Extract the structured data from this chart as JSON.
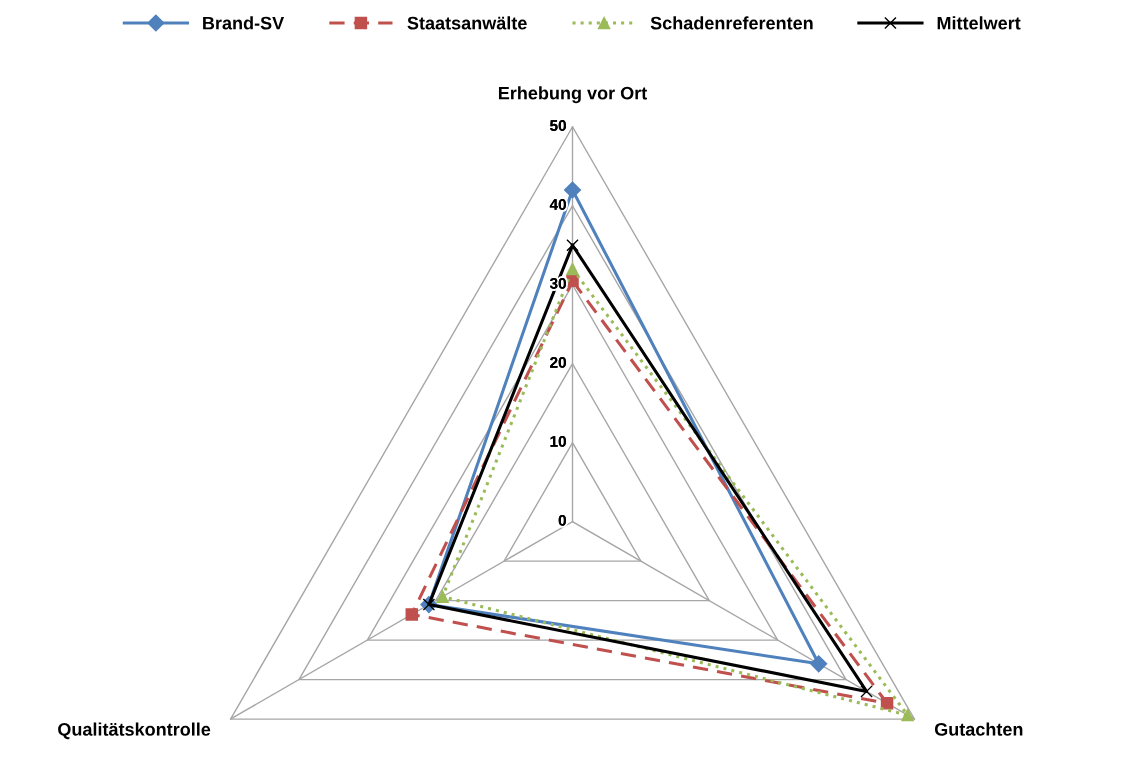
{
  "chart_data": {
    "type": "radar",
    "categories": [
      "Erhebung vor Ort",
      "Gutachten",
      "Qualitätskontrolle"
    ],
    "ylim": [
      0,
      50
    ],
    "yticks": [
      0,
      10,
      20,
      30,
      40,
      50
    ],
    "grid": true,
    "legend": "top",
    "series": [
      {
        "name": "Brand-SV",
        "color": "#4f81bd",
        "marker": "diamond",
        "line_style": "solid",
        "values": [
          42,
          36,
          21
        ]
      },
      {
        "name": "Staatsanwälte",
        "color": "#c0504d",
        "marker": "square",
        "line_style": "dashed",
        "values": [
          30.5,
          46,
          23.5
        ]
      },
      {
        "name": "Schadenreferenten",
        "color": "#9bbb59",
        "marker": "triangle",
        "line_style": "dotted",
        "values": [
          32,
          49,
          19
        ]
      },
      {
        "name": "Mittelwert",
        "color": "#000000",
        "marker": "cross",
        "line_style": "solid",
        "values": [
          35,
          43,
          21
        ]
      }
    ]
  }
}
